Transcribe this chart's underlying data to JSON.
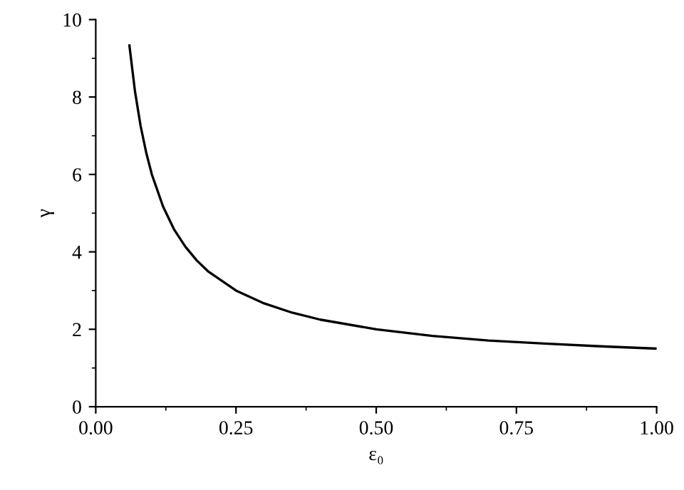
{
  "chart_data": {
    "type": "line",
    "xlabel": "ε₀",
    "ylabel": "γ",
    "series": [
      {
        "color": "#000000",
        "x": [
          0.06,
          0.07,
          0.08,
          0.09,
          0.1,
          0.12,
          0.14,
          0.16,
          0.18,
          0.2,
          0.25,
          0.3,
          0.35,
          0.4,
          0.5,
          0.6,
          0.7,
          0.8,
          0.9,
          1.0
        ],
        "values": [
          9.33,
          8.14,
          7.25,
          6.56,
          6.0,
          5.17,
          4.57,
          4.13,
          3.78,
          3.5,
          3.0,
          2.67,
          2.43,
          2.25,
          2.0,
          1.83,
          1.71,
          1.63,
          1.56,
          1.5
        ]
      }
    ],
    "xlim": [
      0,
      1
    ],
    "xticks": [
      {
        "value": 0,
        "label": "0.00"
      },
      {
        "value": 0.25,
        "label": "0.25"
      },
      {
        "value": 0.5,
        "label": "0.50"
      },
      {
        "value": 0.75,
        "label": "0.75"
      },
      {
        "value": 1,
        "label": "1.00"
      }
    ],
    "ylim": [
      0,
      10
    ],
    "yticks": [
      0,
      2,
      4,
      6,
      8,
      10
    ],
    "grid": false,
    "legend": false,
    "marker": "none",
    "line_style": "solid"
  }
}
